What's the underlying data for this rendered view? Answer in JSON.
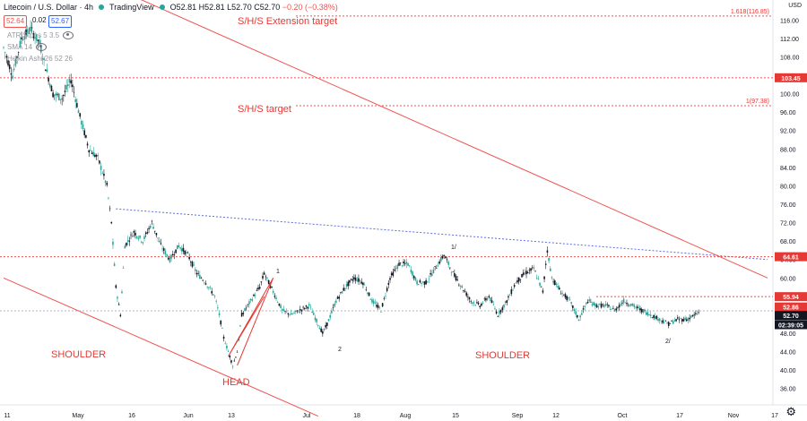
{
  "header": {
    "symbol": "Litecoin / U.S. Dollar · 4h",
    "source": "TradingView",
    "ohlc": {
      "o": "52.81",
      "h": "52.81",
      "l": "52.70",
      "c": "52.70",
      "change": "−0.20 (−0.38%)"
    },
    "sell_price": "52.64",
    "spread": "0.02",
    "buy_price": "52.67"
  },
  "indicators": [
    {
      "label": "ATR Stops 5 3.5"
    },
    {
      "label": "SMA 14"
    },
    {
      "label": "Heikin Ashi 26 52 26"
    }
  ],
  "currency": "USD",
  "annotations": {
    "ext_target": "S/H/S Extension target",
    "target": "S/H/S target",
    "shoulder_left": "SHOULDER",
    "head": "HEAD",
    "shoulder_right": "SHOULDER",
    "fib_1618": "1.618(116.85)",
    "fib_1": "1(97.38)",
    "waves": [
      "1",
      "2",
      "1/",
      "2/"
    ]
  },
  "price_labels": {
    "resistance": "103.45",
    "neckline": "64.61",
    "level_a": "55.94",
    "level_b": "52.86",
    "last": "52.70",
    "countdown": "02:39:05"
  },
  "colors": {
    "accent": "#e53935",
    "up": "#26a69a",
    "down": "#131722",
    "neckline_blue": "#5b6ee1",
    "grid": "#f0f3fa"
  },
  "chart_data": {
    "type": "candlestick",
    "ylim": [
      34,
      118
    ],
    "y_ticks": [
      36,
      40,
      44,
      48,
      52,
      56,
      60,
      64,
      68,
      72,
      76,
      80,
      84,
      88,
      92,
      96,
      100,
      104,
      108,
      112,
      116
    ],
    "x_ticks": [
      "11",
      "May",
      "16",
      "Jun",
      "13",
      "Jul",
      "18",
      "Aug",
      "15",
      "Sep",
      "12",
      "Oct",
      "17",
      "Nov",
      "17"
    ],
    "price_path": [
      [
        0,
        110
      ],
      [
        2,
        104
      ],
      [
        4,
        112
      ],
      [
        6,
        114
      ],
      [
        8,
        111
      ],
      [
        9,
        107
      ],
      [
        11,
        100
      ],
      [
        13,
        99
      ],
      [
        15,
        103
      ],
      [
        17,
        95
      ],
      [
        19,
        88
      ],
      [
        21,
        86
      ],
      [
        23,
        80
      ],
      [
        24,
        72
      ],
      [
        25,
        58
      ],
      [
        26,
        52
      ],
      [
        27,
        67
      ],
      [
        29,
        70
      ],
      [
        31,
        68
      ],
      [
        33,
        72
      ],
      [
        35,
        67
      ],
      [
        37,
        64
      ],
      [
        39,
        67
      ],
      [
        41,
        65
      ],
      [
        43,
        61
      ],
      [
        45,
        59
      ],
      [
        47,
        56
      ],
      [
        48,
        52
      ],
      [
        49,
        47
      ],
      [
        50,
        44
      ],
      [
        51,
        41
      ],
      [
        52,
        44
      ],
      [
        53,
        52
      ],
      [
        55,
        55
      ],
      [
        57,
        58
      ],
      [
        58,
        61
      ],
      [
        60,
        57
      ],
      [
        62,
        53
      ],
      [
        64,
        52
      ],
      [
        66,
        53
      ],
      [
        68,
        54
      ],
      [
        70,
        50
      ],
      [
        71,
        48
      ],
      [
        72,
        50
      ],
      [
        74,
        55
      ],
      [
        76,
        58
      ],
      [
        78,
        60
      ],
      [
        80,
        59
      ],
      [
        82,
        55
      ],
      [
        84,
        53
      ],
      [
        86,
        60
      ],
      [
        88,
        63
      ],
      [
        90,
        63
      ],
      [
        92,
        59
      ],
      [
        94,
        59
      ],
      [
        96,
        62
      ],
      [
        98,
        65
      ],
      [
        100,
        61
      ],
      [
        102,
        58
      ],
      [
        104,
        55
      ],
      [
        106,
        54
      ],
      [
        108,
        56
      ],
      [
        110,
        52
      ],
      [
        112,
        55
      ],
      [
        114,
        59
      ],
      [
        116,
        61
      ],
      [
        118,
        62
      ],
      [
        120,
        57
      ],
      [
        121,
        66
      ],
      [
        122,
        60
      ],
      [
        124,
        57
      ],
      [
        126,
        55
      ],
      [
        128,
        51
      ],
      [
        130,
        55
      ],
      [
        132,
        54
      ],
      [
        134,
        54
      ],
      [
        136,
        53
      ],
      [
        138,
        55
      ],
      [
        140,
        54
      ],
      [
        142,
        53
      ],
      [
        144,
        52
      ],
      [
        146,
        51
      ],
      [
        148,
        50
      ],
      [
        150,
        51
      ],
      [
        152,
        51
      ],
      [
        154,
        52
      ],
      [
        155,
        52.7
      ]
    ],
    "levels": [
      {
        "price": 116.85,
        "style": "fib"
      },
      {
        "price": 103.45,
        "style": "resistance"
      },
      {
        "price": 97.38,
        "style": "fib"
      },
      {
        "price": 64.61,
        "style": "neckline"
      },
      {
        "price": 55.94,
        "style": "level"
      },
      {
        "price": 52.86,
        "style": "last"
      }
    ],
    "trendlines": [
      {
        "name": "descending-resistance",
        "from": [
          20,
          125
        ],
        "to": [
          170,
          60
        ]
      },
      {
        "name": "descending-support",
        "from": [
          0,
          60
        ],
        "to": [
          70,
          30
        ]
      },
      {
        "name": "neckline",
        "from": [
          25,
          75
        ],
        "to": [
          170,
          64
        ]
      }
    ],
    "head_wave": [
      [
        52,
        41
      ],
      [
        60,
        60
      ],
      [
        50,
        43
      ],
      [
        58,
        56
      ]
    ]
  }
}
